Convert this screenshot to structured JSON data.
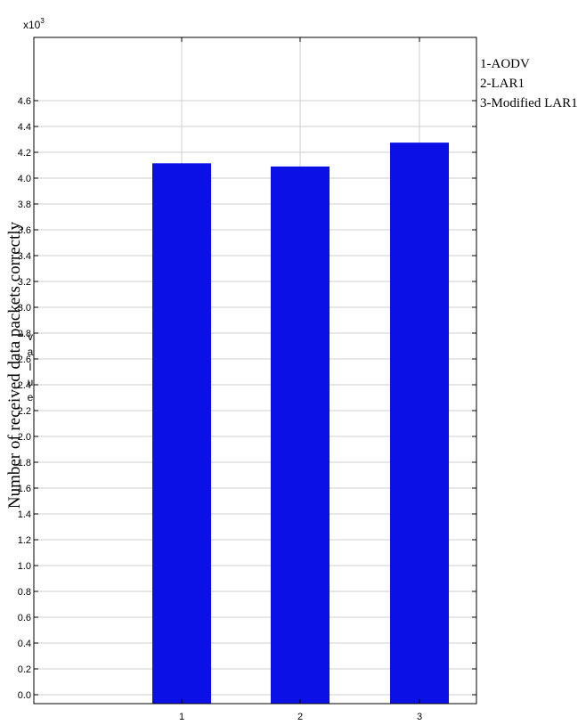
{
  "chart_data": {
    "type": "bar",
    "categories": [
      "1",
      "2",
      "3"
    ],
    "values": [
      4115,
      4090,
      4275
    ],
    "ylabel": "Number of received data packets correctly",
    "ylabel_inner": "value",
    "exponent_label": "x10",
    "exponent_power": "3",
    "ylim": [
      0,
      4.7
    ],
    "yticks": [
      "0.0",
      "0.2",
      "0.4",
      "0.6",
      "0.8",
      "1.0",
      "1.2",
      "1.4",
      "1.6",
      "1.8",
      "2.0",
      "2.2",
      "2.4",
      "2.6",
      "2.8",
      "3.0",
      "3.2",
      "3.4",
      "3.6",
      "3.8",
      "4.0",
      "4.2",
      "4.4",
      "4.6"
    ],
    "bar_color": "#0a10e6",
    "grid": true,
    "legend": [
      "1-AODV",
      "2-LAR1",
      "3-Modified LAR1"
    ],
    "legend_position": "top-right"
  }
}
